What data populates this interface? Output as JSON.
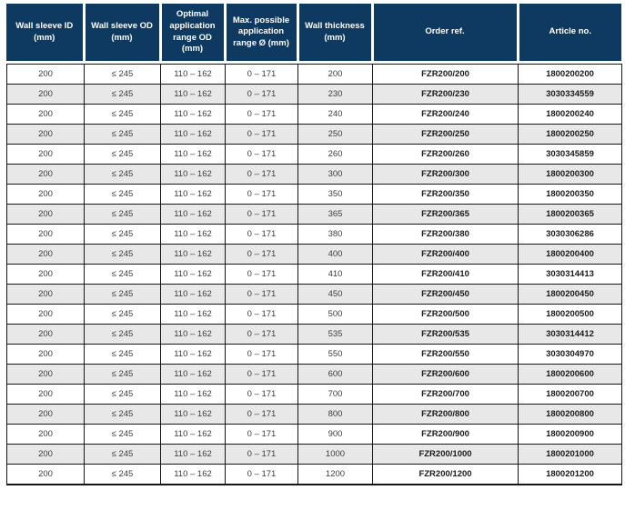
{
  "colors": {
    "header_bg": "#0e3a61",
    "stripe": "#e8e8e8",
    "grid": "#161615",
    "text": "#3d3d3d",
    "emph": "#1b1b1b"
  },
  "table": {
    "columns": [
      {
        "key": "wall-sleeve-id",
        "label": "Wall sleeve ID\n(mm)"
      },
      {
        "key": "wall-sleeve-od",
        "label": "Wall sleeve OD\n(mm)"
      },
      {
        "key": "optimal-application-range-od",
        "label": "Optimal\napplication\nrange OD\n(mm)"
      },
      {
        "key": "max-possible-application-range",
        "label": "Max. possible\napplication\nrange Ø (mm)"
      },
      {
        "key": "wall-thickness",
        "label": "Wall thickness\n(mm)"
      },
      {
        "key": "order-ref",
        "label": "Order ref."
      },
      {
        "key": "article-no",
        "label": "Article no."
      }
    ],
    "rows": [
      [
        "200",
        "≤ 245",
        "110 – 162",
        "0 – 171",
        "200",
        "FZR200/200",
        "1800200200"
      ],
      [
        "200",
        "≤ 245",
        "110 – 162",
        "0 – 171",
        "230",
        "FZR200/230",
        "3030334559"
      ],
      [
        "200",
        "≤ 245",
        "110 – 162",
        "0 – 171",
        "240",
        "FZR200/240",
        "1800200240"
      ],
      [
        "200",
        "≤ 245",
        "110 – 162",
        "0 – 171",
        "250",
        "FZR200/250",
        "1800200250"
      ],
      [
        "200",
        "≤ 245",
        "110 – 162",
        "0 – 171",
        "260",
        "FZR200/260",
        "3030345859"
      ],
      [
        "200",
        "≤ 245",
        "110 – 162",
        "0 – 171",
        "300",
        "FZR200/300",
        "1800200300"
      ],
      [
        "200",
        "≤ 245",
        "110 – 162",
        "0 – 171",
        "350",
        "FZR200/350",
        "1800200350"
      ],
      [
        "200",
        "≤ 245",
        "110 – 162",
        "0 – 171",
        "365",
        "FZR200/365",
        "1800200365"
      ],
      [
        "200",
        "≤ 245",
        "110 – 162",
        "0 – 171",
        "380",
        "FZR200/380",
        "3030306286"
      ],
      [
        "200",
        "≤ 245",
        "110 – 162",
        "0 – 171",
        "400",
        "FZR200/400",
        "1800200400"
      ],
      [
        "200",
        "≤ 245",
        "110 – 162",
        "0 – 171",
        "410",
        "FZR200/410",
        "3030314413"
      ],
      [
        "200",
        "≤ 245",
        "110 – 162",
        "0 – 171",
        "450",
        "FZR200/450",
        "1800200450"
      ],
      [
        "200",
        "≤ 245",
        "110 – 162",
        "0 – 171",
        "500",
        "FZR200/500",
        "1800200500"
      ],
      [
        "200",
        "≤ 245",
        "110 – 162",
        "0 – 171",
        "535",
        "FZR200/535",
        "3030314412"
      ],
      [
        "200",
        "≤ 245",
        "110 – 162",
        "0 – 171",
        "550",
        "FZR200/550",
        "3030304970"
      ],
      [
        "200",
        "≤ 245",
        "110 – 162",
        "0 – 171",
        "600",
        "FZR200/600",
        "1800200600"
      ],
      [
        "200",
        "≤ 245",
        "110 – 162",
        "0 – 171",
        "700",
        "FZR200/700",
        "1800200700"
      ],
      [
        "200",
        "≤ 245",
        "110 – 162",
        "0 – 171",
        "800",
        "FZR200/800",
        "1800200800"
      ],
      [
        "200",
        "≤ 245",
        "110 – 162",
        "0 – 171",
        "900",
        "FZR200/900",
        "1800200900"
      ],
      [
        "200",
        "≤ 245",
        "110 – 162",
        "0 – 171",
        "1000",
        "FZR200/1000",
        "1800201000"
      ],
      [
        "200",
        "≤ 245",
        "110 – 162",
        "0 – 171",
        "1200",
        "FZR200/1200",
        "1800201200"
      ]
    ]
  }
}
